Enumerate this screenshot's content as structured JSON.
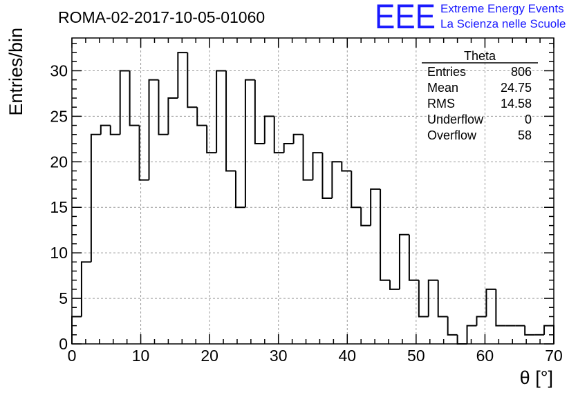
{
  "chart_data": {
    "type": "bar",
    "style": "step-histogram",
    "title": "ROMA-02-2017-10-05-01060",
    "xlabel": "θ [°]",
    "ylabel": "Entries/bin",
    "xlim": [
      0,
      70
    ],
    "ylim": [
      0,
      33.6
    ],
    "xticks": [
      0,
      10,
      20,
      30,
      40,
      50,
      60,
      70
    ],
    "yticks": [
      0,
      5,
      10,
      15,
      20,
      25,
      30
    ],
    "grid": true,
    "bin_width": 1.4,
    "bin_counts": [
      3,
      9,
      23,
      24,
      23,
      30,
      24,
      18,
      29,
      23,
      27,
      32,
      26,
      24,
      21,
      30,
      19,
      15,
      29,
      22,
      25,
      21,
      22,
      23,
      18,
      21,
      16,
      20,
      19,
      15,
      13,
      17,
      7,
      6,
      12,
      7,
      3,
      7,
      3,
      1,
      0,
      2,
      3,
      6,
      2,
      2,
      2,
      1,
      1,
      2
    ],
    "stats_box": {
      "title": "Theta",
      "rows": [
        {
          "label": "Entries",
          "value": "806"
        },
        {
          "label": "Mean",
          "value": "24.75"
        },
        {
          "label": "RMS",
          "value": "14.58"
        },
        {
          "label": "Underflow",
          "value": "0"
        },
        {
          "label": "Overflow",
          "value": "58"
        }
      ]
    }
  },
  "logo": {
    "text": "EEE",
    "line1": "Extreme Energy Events",
    "line2": "La Scienza nelle Scuole",
    "color": "#1a1aff"
  }
}
